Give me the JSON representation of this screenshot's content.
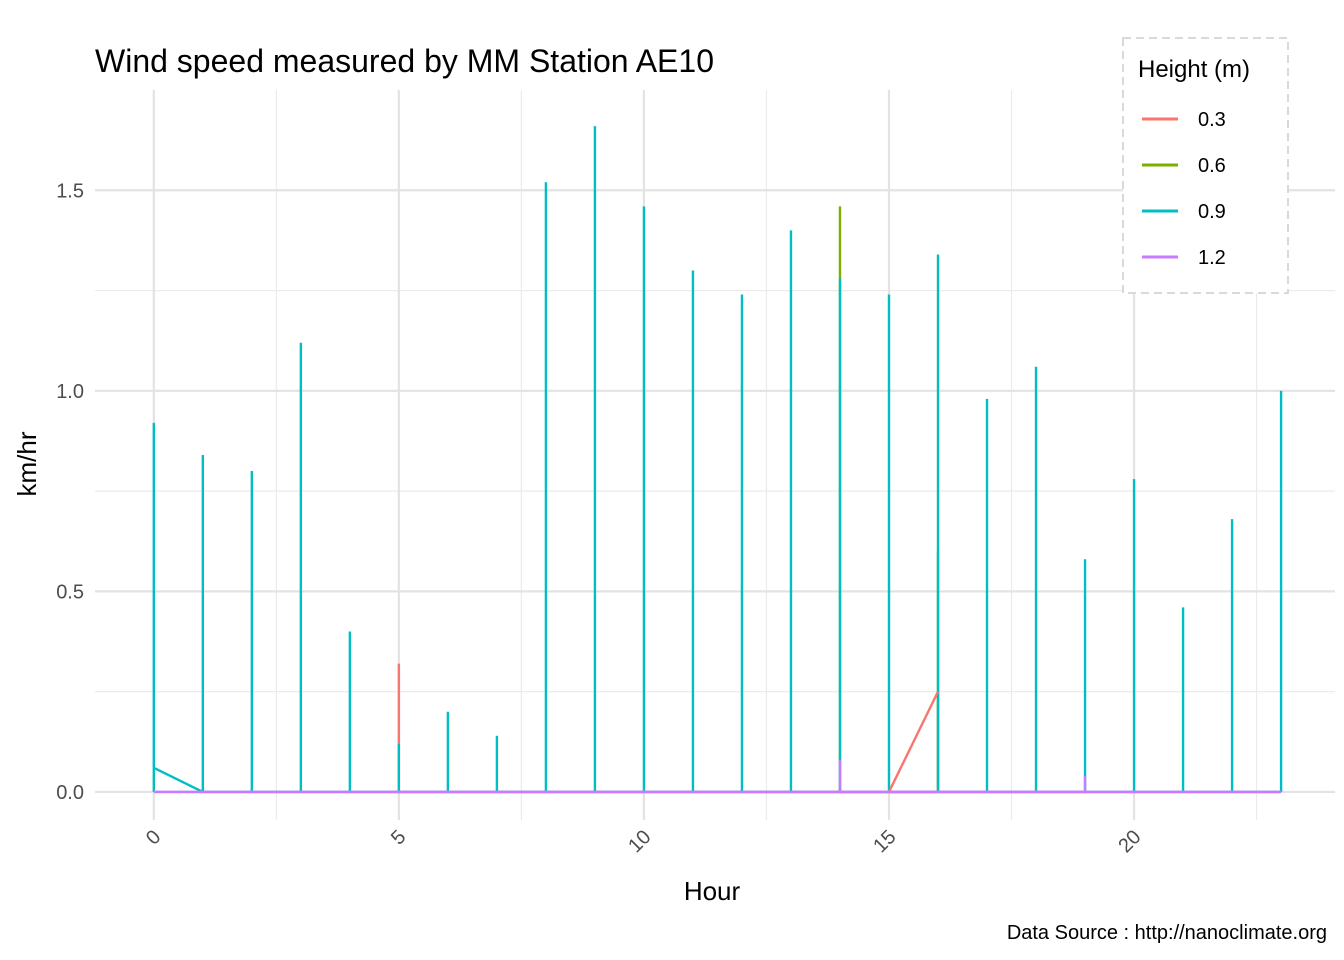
{
  "chart_data": {
    "type": "line",
    "title": "Wind speed measured by MM Station AE10",
    "xlabel": "Hour",
    "ylabel": "km/hr",
    "caption": "Data Source : http://nanoclimate.org",
    "xlim": [
      -1.2,
      24.1
    ],
    "ylim": [
      -0.07,
      1.75
    ],
    "xticks": [
      "0",
      "5",
      "10",
      "15",
      "20"
    ],
    "xtick_values": [
      0,
      5,
      10,
      15,
      20
    ],
    "yticks": [
      "0.0",
      "0.5",
      "1.0",
      "1.5"
    ],
    "ytick_values": [
      0,
      0.5,
      1.0,
      1.5
    ],
    "grid": true,
    "legend": {
      "title": "Height (m)",
      "position": "top-right"
    },
    "series": [
      {
        "name": "0.3",
        "color": "#F8766D",
        "hours": [
          5,
          15,
          16
        ],
        "max": [
          0.32,
          0.0,
          0.25
        ],
        "start_value": 0.0,
        "end_value": 0.0
      },
      {
        "name": "0.6",
        "color": "#7CAE00",
        "hours": [
          14,
          16
        ],
        "max": [
          1.46,
          0.6
        ],
        "start_value": 0.0,
        "end_value": 0.0
      },
      {
        "name": "0.9",
        "color": "#00BFC4",
        "hours": [
          0,
          1,
          2,
          3,
          4,
          5,
          6,
          7,
          8,
          9,
          10,
          11,
          12,
          13,
          14,
          15,
          16,
          17,
          18,
          19,
          20,
          21,
          22,
          23
        ],
        "max": [
          0.92,
          0.84,
          0.8,
          1.12,
          0.4,
          0.12,
          0.2,
          0.14,
          1.52,
          1.66,
          1.46,
          1.3,
          1.24,
          1.4,
          1.28,
          1.24,
          1.34,
          0.98,
          1.06,
          0.58,
          0.78,
          0.46,
          0.68,
          1.0
        ],
        "start_value": 0.06,
        "end_value": 0.0
      },
      {
        "name": "1.2",
        "color": "#C77CFF",
        "hours": [
          14,
          19
        ],
        "max": [
          0.08,
          0.04
        ],
        "start_value": 0.0,
        "end_value": 0.0
      }
    ]
  }
}
